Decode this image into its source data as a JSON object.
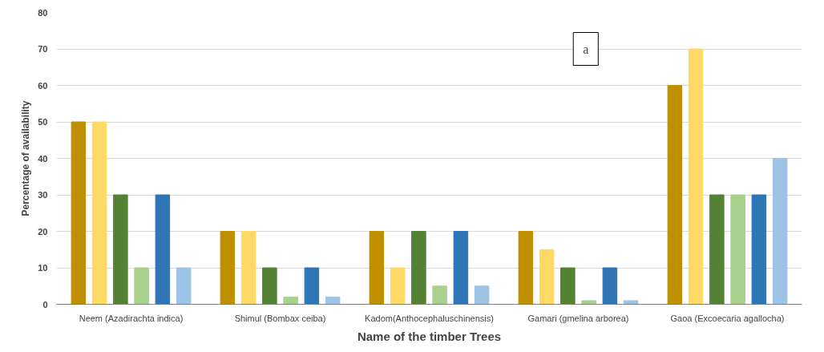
{
  "chart_data": {
    "type": "bar",
    "xlabel": "Name of the timber Trees",
    "ylabel": "Percentage of availability",
    "categories": [
      "Neem (Azadirachta indica)",
      "Shimul (Bombax ceiba)",
      "Kadom(Anthocephaluschinensis)",
      "Gamari (gmelina arborea)",
      "Gaoa (Excoecaria agallocha)"
    ],
    "series": [
      {
        "color": "#bf8f00",
        "values": [
          50,
          20,
          20,
          20,
          60
        ]
      },
      {
        "color": "#ffd966",
        "values": [
          50,
          20,
          10,
          15,
          70
        ]
      },
      {
        "color": "#548235",
        "values": [
          30,
          10,
          20,
          10,
          30
        ]
      },
      {
        "color": "#a9d18e",
        "values": [
          10,
          2,
          5,
          1,
          30
        ]
      },
      {
        "color": "#2e75b6",
        "values": [
          30,
          10,
          20,
          10,
          30
        ]
      },
      {
        "color": "#9dc3e6",
        "values": [
          10,
          2,
          5,
          1,
          40
        ]
      }
    ],
    "ylim": [
      0,
      80
    ],
    "yticks": [
      0,
      10,
      20,
      30,
      40,
      50,
      60,
      70,
      80
    ],
    "grid": "y",
    "annotations": [
      "a"
    ]
  }
}
